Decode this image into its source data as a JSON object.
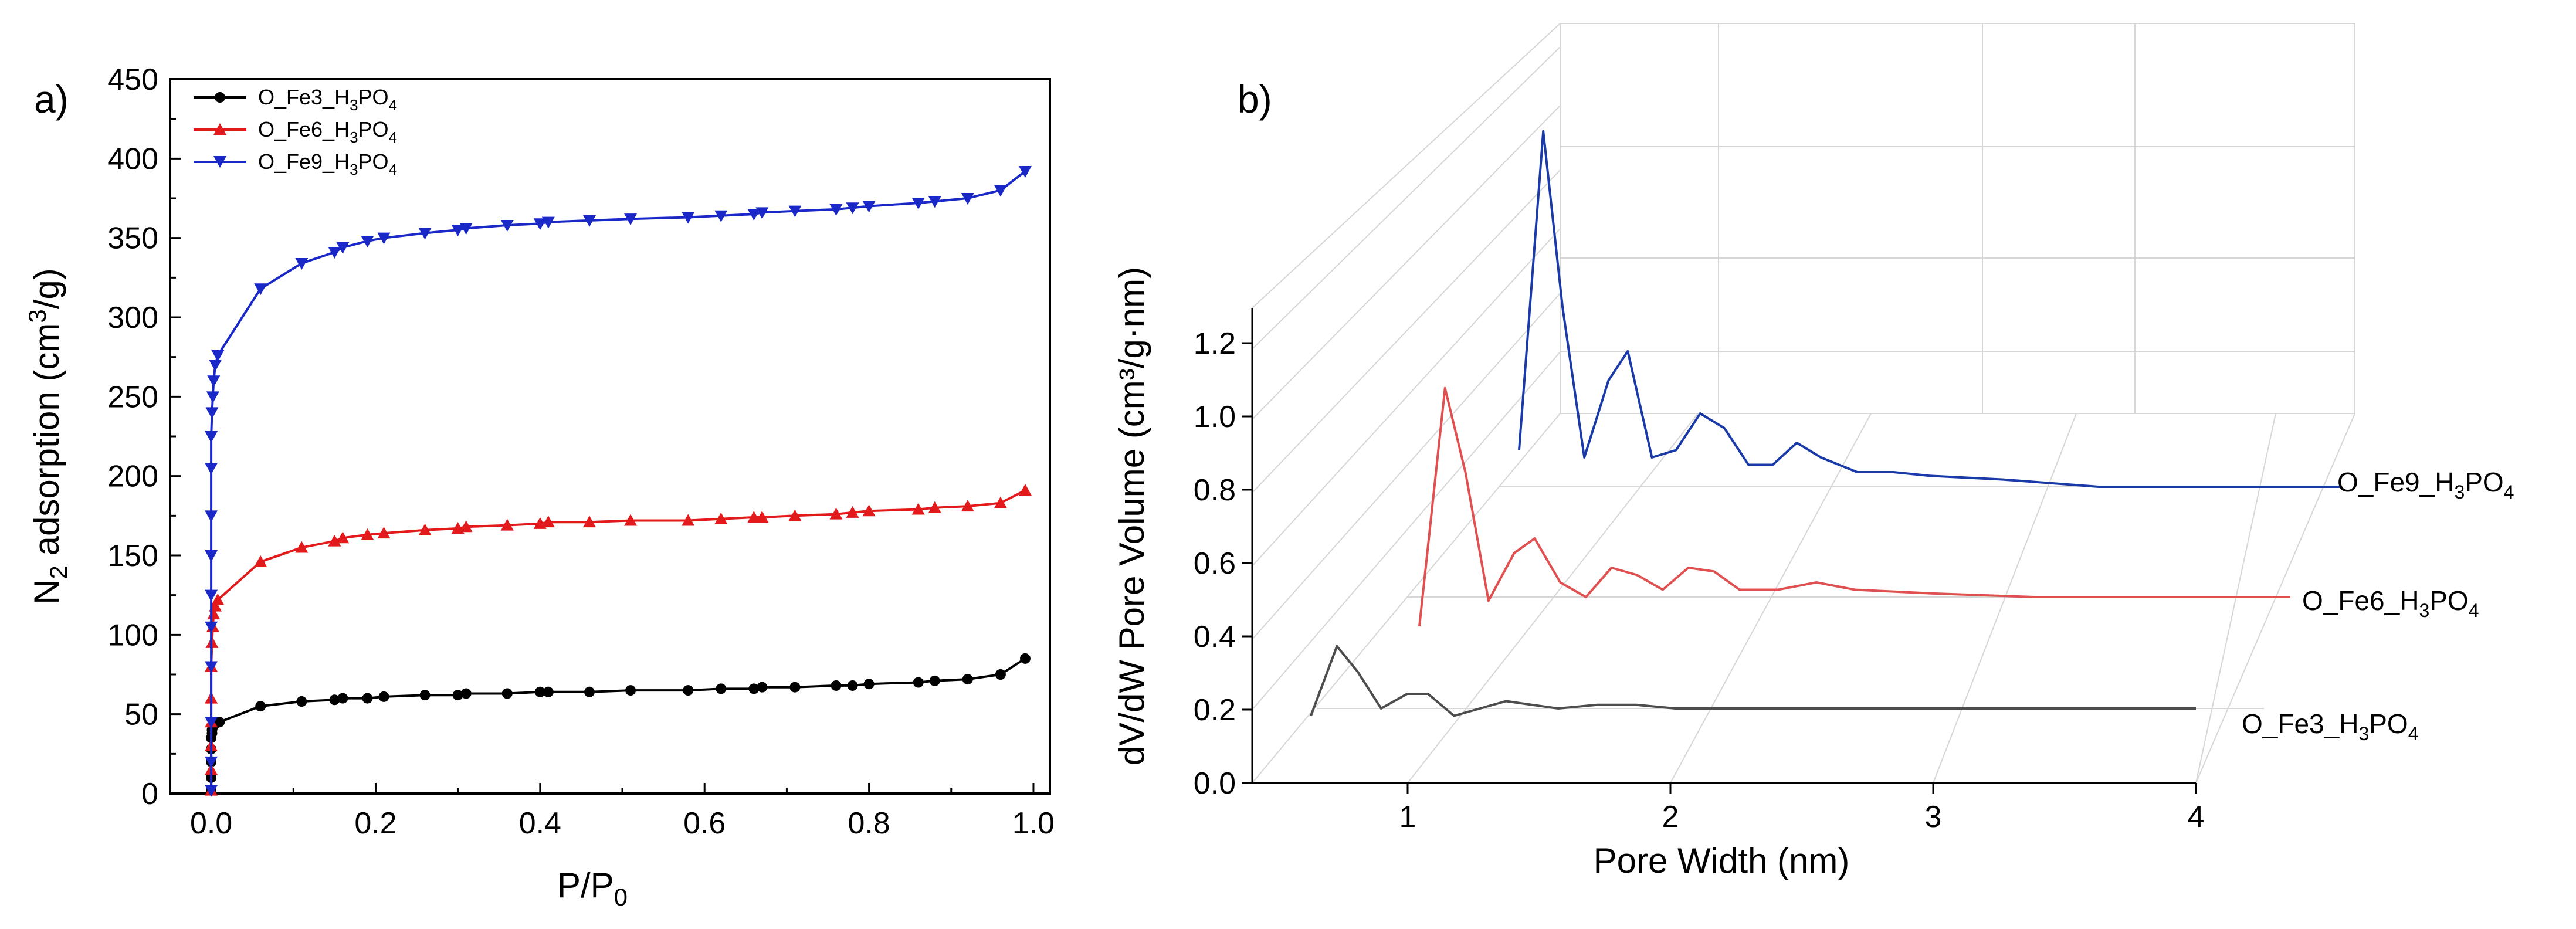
{
  "chart_data": [
    {
      "type": "line",
      "panel_label": "a)",
      "xlabel": "P/P",
      "xlabel_sub": "0",
      "ylabel_pre": "N",
      "ylabel_sub": "2",
      "ylabel_mid": " adsorption (cm",
      "ylabel_sup": "3",
      "ylabel_post": "/g)",
      "xlim": [
        -0.05,
        1.02
      ],
      "ylim": [
        0,
        450
      ],
      "xticks": [
        "0.0",
        "0.2",
        "0.4",
        "0.6",
        "0.8",
        "1.0"
      ],
      "yticks": [
        "0",
        "50",
        "100",
        "150",
        "200",
        "250",
        "300",
        "350",
        "400",
        "450"
      ],
      "legend_position": "top-left",
      "series": [
        {
          "name": "O_Fe3_H3PO4",
          "label_parts": [
            "O_Fe3_H",
            "3",
            "PO",
            "4"
          ],
          "color": "#000000",
          "marker": "circle",
          "x": [
            0.0,
            0.0,
            0.0,
            0.0,
            0.0,
            0.001,
            0.001,
            0.002,
            0.003,
            0.005,
            0.01,
            0.06,
            0.11,
            0.15,
            0.16,
            0.19,
            0.21,
            0.26,
            0.3,
            0.31,
            0.36,
            0.4,
            0.41,
            0.46,
            0.51,
            0.58,
            0.62,
            0.66,
            0.67,
            0.71,
            0.76,
            0.78,
            0.8,
            0.86,
            0.88,
            0.92,
            0.96,
            0.99
          ],
          "y": [
            2,
            10,
            20,
            28,
            35,
            38,
            40,
            42,
            43,
            44,
            45,
            55,
            58,
            59,
            60,
            60,
            61,
            62,
            62,
            63,
            63,
            64,
            64,
            64,
            65,
            65,
            66,
            66,
            67,
            67,
            68,
            68,
            69,
            70,
            71,
            72,
            75,
            85
          ]
        },
        {
          "name": "O_Fe6_H3PO4",
          "label_parts": [
            "O_Fe6_H",
            "3",
            "PO",
            "4"
          ],
          "color": "#e31a1c",
          "marker": "triangle-up",
          "x": [
            0.0,
            0.0,
            0.0,
            0.0,
            0.0,
            0.0,
            0.001,
            0.002,
            0.003,
            0.005,
            0.008,
            0.06,
            0.11,
            0.15,
            0.16,
            0.19,
            0.21,
            0.26,
            0.3,
            0.31,
            0.36,
            0.4,
            0.41,
            0.46,
            0.51,
            0.58,
            0.62,
            0.66,
            0.67,
            0.71,
            0.76,
            0.78,
            0.8,
            0.86,
            0.88,
            0.92,
            0.96,
            0.99
          ],
          "y": [
            2,
            15,
            30,
            45,
            60,
            80,
            95,
            105,
            113,
            118,
            122,
            146,
            155,
            159,
            161,
            163,
            164,
            166,
            167,
            168,
            169,
            170,
            171,
            171,
            172,
            172,
            173,
            174,
            174,
            175,
            176,
            177,
            178,
            179,
            180,
            181,
            183,
            191
          ]
        },
        {
          "name": "O_Fe9_H3PO4",
          "label_parts": [
            "O_Fe9_H",
            "3",
            "PO",
            "4"
          ],
          "color": "#1a28c8",
          "marker": "triangle-down",
          "x": [
            0.0,
            0.0,
            0.0,
            0.0,
            0.0,
            0.0,
            0.0,
            0.0,
            0.0,
            0.0,
            0.001,
            0.002,
            0.003,
            0.005,
            0.008,
            0.06,
            0.11,
            0.15,
            0.16,
            0.19,
            0.21,
            0.26,
            0.3,
            0.31,
            0.36,
            0.4,
            0.41,
            0.46,
            0.51,
            0.58,
            0.62,
            0.66,
            0.67,
            0.71,
            0.76,
            0.78,
            0.8,
            0.86,
            0.88,
            0.92,
            0.96,
            0.99
          ],
          "y": [
            2,
            20,
            45,
            80,
            105,
            125,
            150,
            175,
            205,
            225,
            240,
            250,
            260,
            270,
            276,
            318,
            334,
            341,
            344,
            348,
            350,
            353,
            355,
            356,
            358,
            359,
            360,
            361,
            362,
            363,
            364,
            365,
            366,
            367,
            368,
            369,
            370,
            372,
            373,
            375,
            380,
            392
          ]
        }
      ]
    },
    {
      "type": "line",
      "projection": "3d",
      "panel_label": "b)",
      "xlabel": "Pore Width (nm)",
      "ylabel": "dV/dW Pore Volume (cm³/g·nm)",
      "xlim": [
        0.4,
        4
      ],
      "ylim": [
        0,
        1.3
      ],
      "xticks": [
        1,
        2,
        3,
        4
      ],
      "xtick_labels": [
        "1",
        "2",
        "3",
        "4"
      ],
      "yticks": [
        "0.0",
        "0.2",
        "0.4",
        "0.6",
        "0.8",
        "1.0",
        "1.2"
      ],
      "series": [
        {
          "name": "O_Fe3_H3PO4",
          "label_parts": [
            "O_Fe3_H",
            "3",
            "PO",
            "4"
          ],
          "color": "#4d4d4d",
          "x": [
            0.6,
            0.7,
            0.78,
            0.87,
            0.97,
            1.05,
            1.15,
            1.25,
            1.35,
            1.45,
            1.55,
            1.7,
            1.85,
            2.0,
            2.3,
            2.6,
            3.0,
            3.5,
            4.0
          ],
          "y": [
            0.18,
            0.37,
            0.3,
            0.2,
            0.24,
            0.24,
            0.18,
            0.2,
            0.22,
            0.21,
            0.2,
            0.21,
            0.21,
            0.2,
            0.2,
            0.2,
            0.2,
            0.2,
            0.2
          ]
        },
        {
          "name": "O_Fe6_H3PO4",
          "label_parts": [
            "O_Fe6_H",
            "3",
            "PO",
            "4"
          ],
          "color": "#e05050",
          "x": [
            0.6,
            0.7,
            0.78,
            0.87,
            0.97,
            1.05,
            1.15,
            1.25,
            1.35,
            1.45,
            1.55,
            1.65,
            1.75,
            1.85,
            2.0,
            2.15,
            2.3,
            2.6,
            3.0,
            3.5,
            4.0
          ],
          "y": [
            0.38,
            1.03,
            0.8,
            0.45,
            0.58,
            0.62,
            0.5,
            0.46,
            0.54,
            0.52,
            0.48,
            0.54,
            0.53,
            0.48,
            0.48,
            0.5,
            0.48,
            0.47,
            0.46,
            0.46,
            0.46
          ]
        },
        {
          "name": "O_Fe9_H3PO4",
          "label_parts": [
            "O_Fe9_H",
            "3",
            "PO",
            "4"
          ],
          "color": "#1a3aa8",
          "x": [
            0.6,
            0.7,
            0.78,
            0.87,
            0.97,
            1.05,
            1.15,
            1.25,
            1.35,
            1.45,
            1.55,
            1.65,
            1.75,
            1.85,
            2.0,
            2.15,
            2.3,
            2.6,
            3.0,
            3.5,
            4.0
          ],
          "y": [
            0.66,
            1.53,
            1.05,
            0.64,
            0.85,
            0.93,
            0.64,
            0.66,
            0.76,
            0.72,
            0.62,
            0.62,
            0.68,
            0.64,
            0.6,
            0.6,
            0.59,
            0.58,
            0.56,
            0.56,
            0.56
          ]
        }
      ]
    }
  ]
}
